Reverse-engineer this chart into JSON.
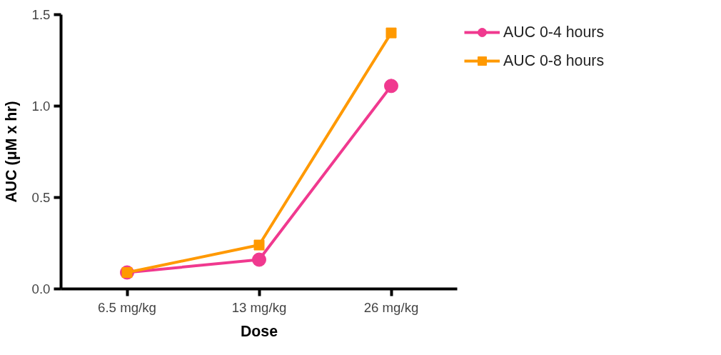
{
  "chart_data": {
    "type": "line",
    "xlabel": "Dose",
    "ylabel": "AUC (μM x hr)",
    "categories": [
      "6.5 mg/kg",
      "13 mg/kg",
      "26 mg/kg"
    ],
    "series": [
      {
        "name": "AUC 0-4 hours",
        "color": "#f0398f",
        "marker": "circle",
        "values": [
          0.09,
          0.16,
          1.11
        ]
      },
      {
        "name": "AUC 0-8 hours",
        "color": "#ff9900",
        "marker": "square",
        "values": [
          0.09,
          0.24,
          1.4
        ]
      }
    ],
    "ylim": [
      0,
      1.5
    ],
    "yticks": [
      {
        "value": 0,
        "label": "0.0"
      },
      {
        "value": 0.5,
        "label": "0.5"
      },
      {
        "value": 1,
        "label": "1.0"
      },
      {
        "value": 1.5,
        "label": "1.5"
      }
    ],
    "grid": false,
    "legend": "top right",
    "line_style": "solid"
  }
}
